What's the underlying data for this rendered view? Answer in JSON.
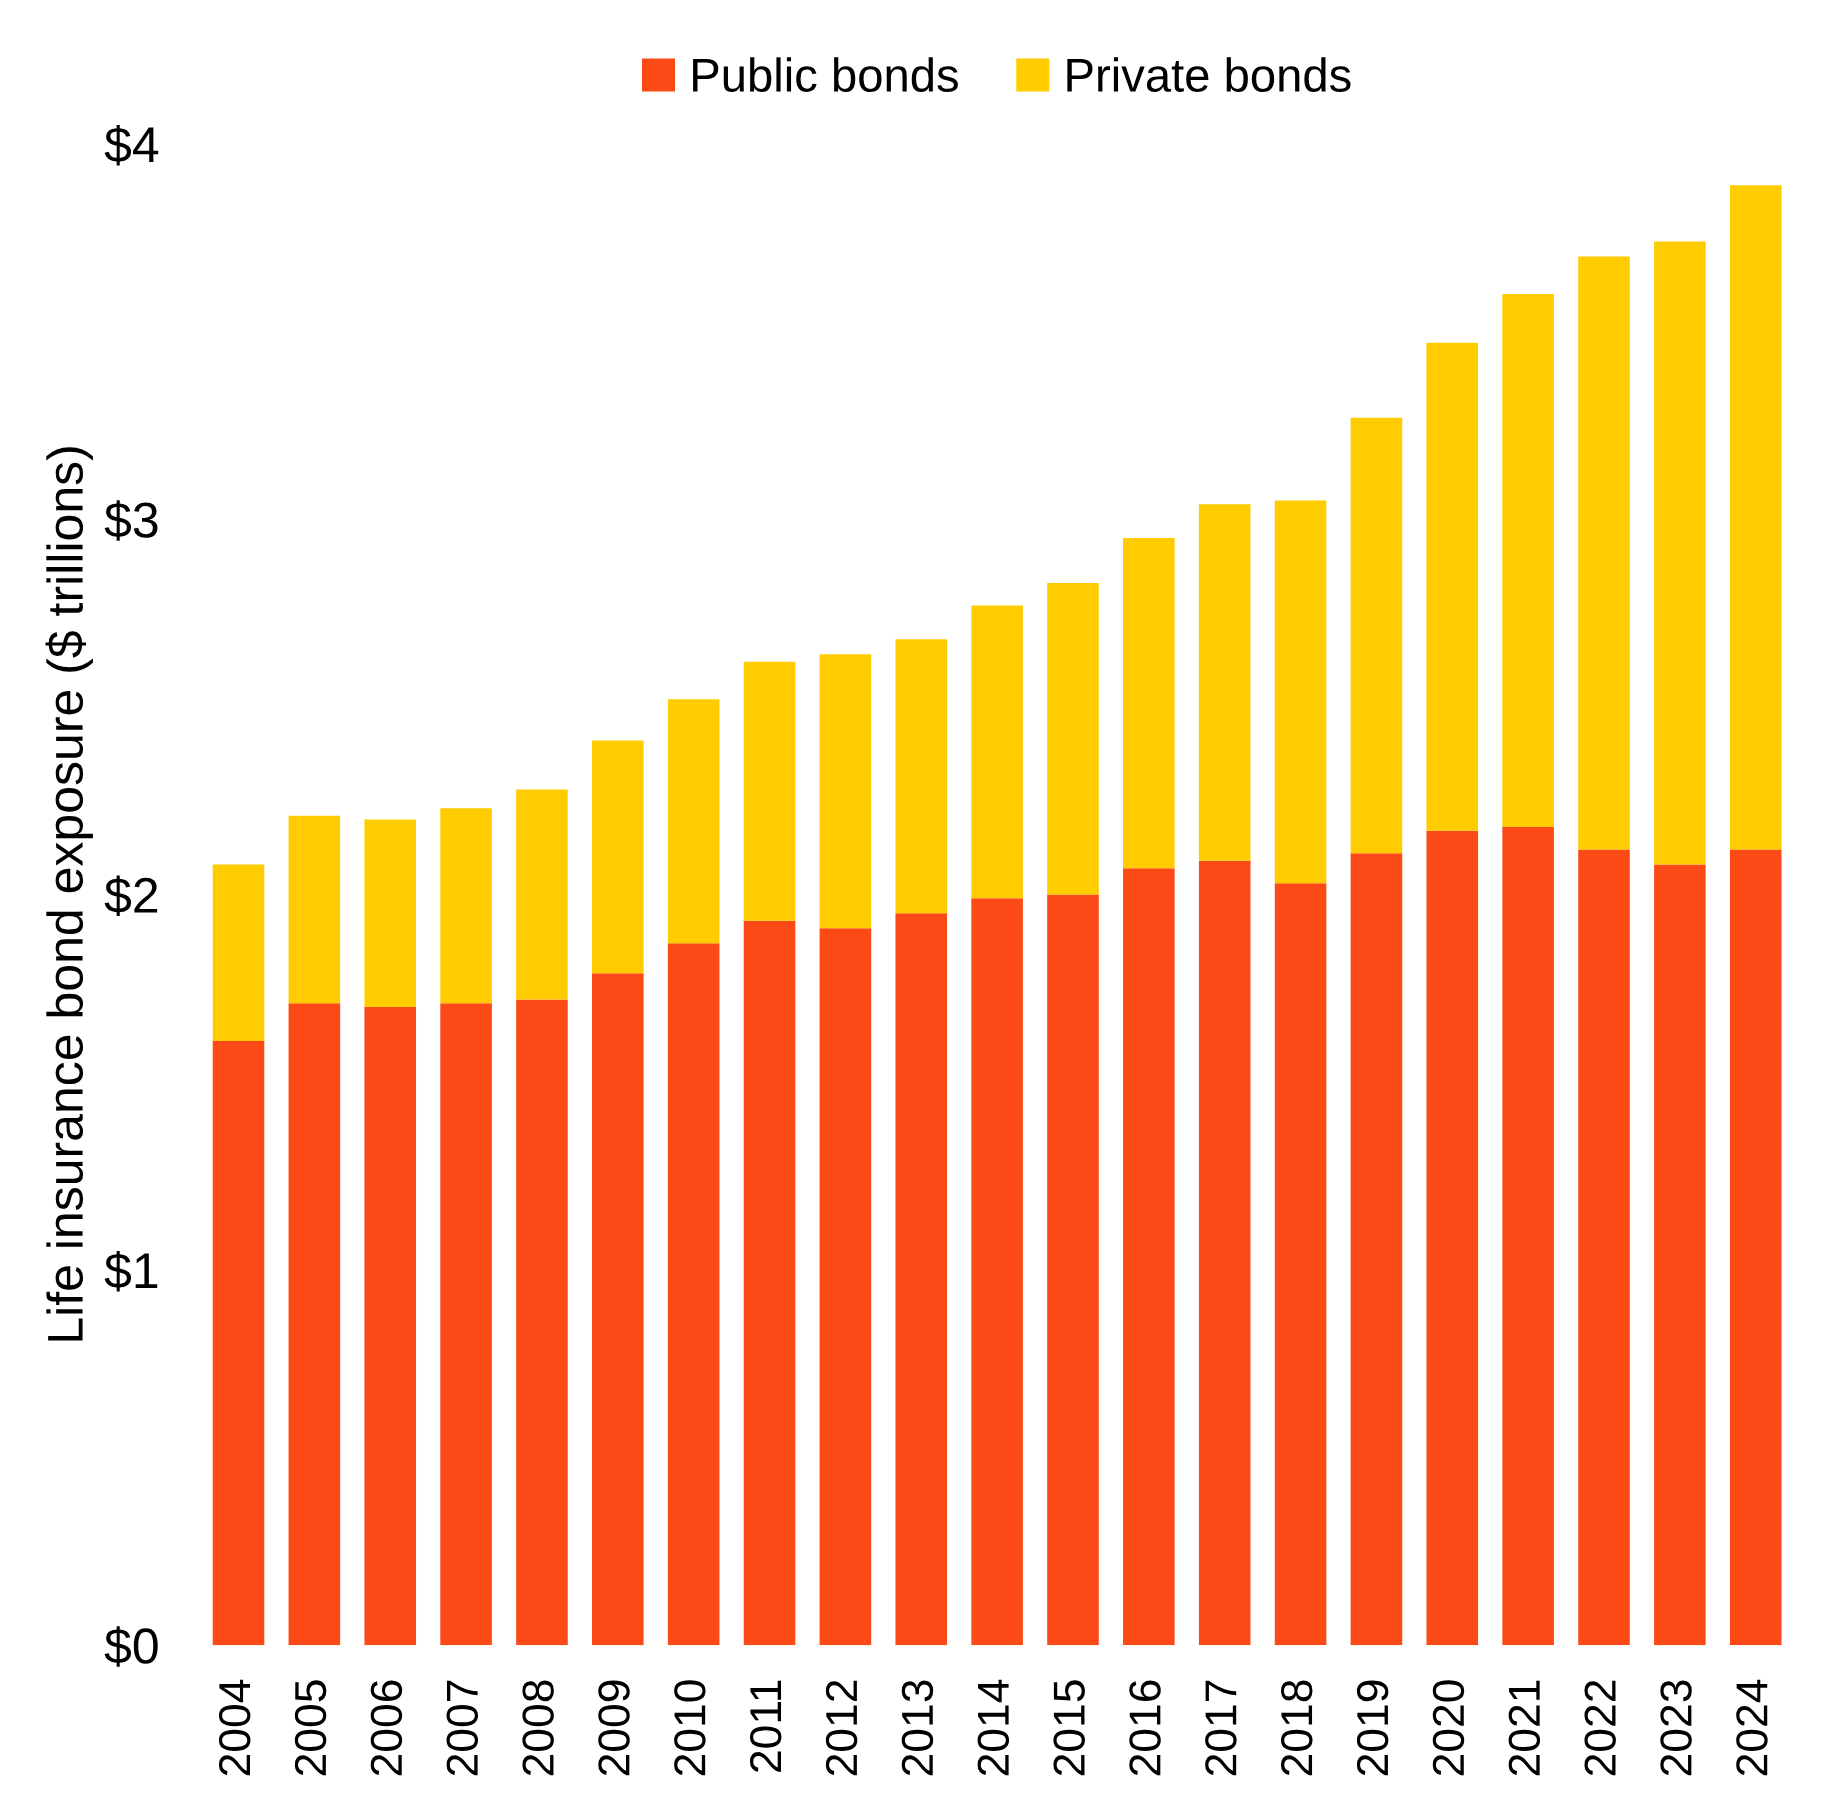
{
  "chart_data": {
    "type": "bar",
    "stacked": true,
    "ylabel": "Life insurance bond exposure ($ trillions)",
    "categories": [
      "2004",
      "2005",
      "2006",
      "2007",
      "2008",
      "2009",
      "2010",
      "2011",
      "2012",
      "2013",
      "2014",
      "2015",
      "2016",
      "2017",
      "2018",
      "2019",
      "2020",
      "2021",
      "2022",
      "2023",
      "2024"
    ],
    "series": [
      {
        "name": "Public bonds",
        "color": "#fc4a17",
        "values": [
          1.61,
          1.71,
          1.7,
          1.71,
          1.72,
          1.79,
          1.87,
          1.93,
          1.91,
          1.95,
          1.99,
          2.0,
          2.07,
          2.09,
          2.03,
          2.11,
          2.17,
          2.18,
          2.12,
          2.08,
          2.12
        ]
      },
      {
        "name": "Private bonds",
        "color": "#ffcc00",
        "values": [
          0.47,
          0.5,
          0.5,
          0.52,
          0.56,
          0.62,
          0.65,
          0.69,
          0.73,
          0.73,
          0.78,
          0.83,
          0.88,
          0.95,
          1.02,
          1.16,
          1.3,
          1.42,
          1.58,
          1.66,
          1.77
        ]
      }
    ],
    "ylim": [
      0,
      4
    ],
    "yticks": [
      {
        "value": 0,
        "label": "$0"
      },
      {
        "value": 1,
        "label": "$1"
      },
      {
        "value": 2,
        "label": "$2"
      },
      {
        "value": 3,
        "label": "$3"
      },
      {
        "value": 4,
        "label": "$4"
      }
    ],
    "grid": false,
    "legend": "top"
  }
}
